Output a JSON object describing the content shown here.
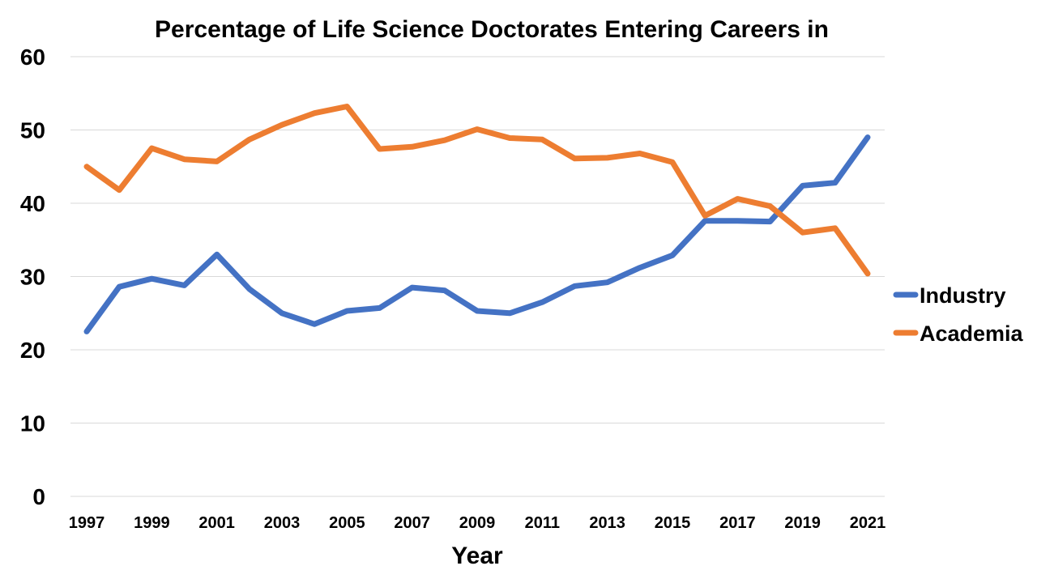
{
  "chart_data": {
    "type": "line",
    "title": "Percentage of Life Science Doctorates Entering Careers in",
    "xlabel": "Year",
    "ylabel": "",
    "ylim": [
      0,
      60
    ],
    "yticks": [
      0,
      10,
      20,
      30,
      40,
      50,
      60
    ],
    "x": [
      1997,
      1998,
      1999,
      2000,
      2001,
      2002,
      2003,
      2004,
      2005,
      2006,
      2007,
      2008,
      2009,
      2010,
      2011,
      2012,
      2013,
      2014,
      2015,
      2016,
      2017,
      2018,
      2019,
      2020,
      2021
    ],
    "xtick_labels": [
      "1997",
      "1999",
      "2001",
      "2003",
      "2005",
      "2007",
      "2009",
      "2011",
      "2013",
      "2015",
      "2017",
      "2019",
      "2021"
    ],
    "grid": true,
    "legend_position": "right",
    "series": [
      {
        "name": "Industry",
        "color": "#4472c4",
        "values": [
          22.5,
          28.6,
          29.7,
          28.8,
          33.0,
          28.3,
          25.0,
          23.5,
          25.3,
          25.7,
          28.5,
          28.1,
          25.3,
          25.0,
          26.5,
          28.7,
          29.2,
          31.2,
          32.9,
          37.6,
          37.6,
          37.5,
          42.4,
          42.8,
          49.0
        ]
      },
      {
        "name": "Academia",
        "color": "#ed7d31",
        "values": [
          45.0,
          41.8,
          47.5,
          46.0,
          45.7,
          48.7,
          50.7,
          52.3,
          53.2,
          47.4,
          47.7,
          48.6,
          50.1,
          48.9,
          48.7,
          46.1,
          46.2,
          46.8,
          45.6,
          38.3,
          40.6,
          39.6,
          36.0,
          36.6,
          30.4
        ]
      }
    ]
  }
}
